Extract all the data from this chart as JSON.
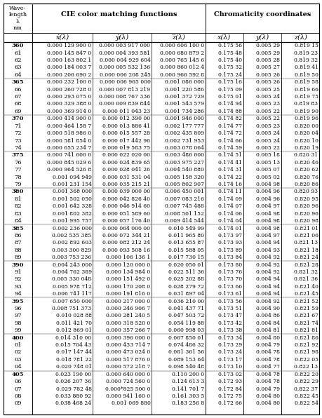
{
  "rows": [
    [
      "360",
      "0.000 129 900 0",
      "0.000 003 917 000",
      "0.000 606 100 0",
      "0.175 56",
      "0.005 29",
      "0.819 15"
    ],
    [
      "61",
      "0.000 145 847 0",
      "0.000 004 393 581",
      "0.000 680 879 2",
      "0.175 48",
      "0.005 29",
      "0.819 23"
    ],
    [
      "62",
      "0.000 163 802 1",
      "0.000 004 929 604",
      "0.000 765 145 6",
      "0.175 40",
      "0.005 28",
      "0.819 32"
    ],
    [
      "63",
      "0.000 184 003 7",
      "0.000 005 532 136",
      "0.000 860 012 4",
      "0.175 32",
      "0.005 27",
      "0.819 41"
    ],
    [
      "64",
      "0.000 206 690 2",
      "0.000 006 208 245",
      "0.000 966 592 8",
      "0.175 24",
      "0.005 26",
      "0.819 50"
    ],
    [
      "365",
      "0.000 232 100 0",
      "0.000 006 965 000",
      "0.001 086 000",
      "0.175 16",
      "0.005 26",
      "0.819 58"
    ],
    [
      "66",
      "0.000 260 728 0",
      "0.000 007 813 219",
      "0.001 220 586",
      "0.175 09",
      "0.005 25",
      "0.819 66"
    ],
    [
      "67",
      "0.000 293 075 0",
      "0.000 008 767 336",
      "0.001 372 729",
      "0.175 01",
      "0.005 24",
      "0.819 75"
    ],
    [
      "68",
      "0.000 329 388 0",
      "0.000 009 839 844",
      "0.001 543 579",
      "0.174 94",
      "0.005 23",
      "0.819 83"
    ],
    [
      "69",
      "0.000 369 914 0",
      "0.000 011 043 23",
      "0.001 734 286",
      "0.174 88",
      "0.005 22",
      "0.819 90"
    ],
    [
      "370",
      "0.000 414 900 0",
      "0.000 012 390 00",
      "0.001 946 000",
      "0.174 82",
      "0.005 22",
      "0.819 96"
    ],
    [
      "71",
      "0.000 464 158 7",
      "0.000 013 886 41",
      "0.002 177 777",
      "0.174 77",
      "0.005 23",
      "0.820 00"
    ],
    [
      "72",
      "0.000 518 986 0",
      "0.000 015 557 28",
      "0.002 435 809",
      "0.174 72",
      "0.005 24",
      "0.820 04"
    ],
    [
      "73",
      "0.000 581 854 0",
      "0.000 017 442 96",
      "0.002 731 953",
      "0.174 66",
      "0.005 24",
      "0.820 10"
    ],
    [
      "74",
      "0.000 655 234 7",
      "0.000 019 583 75",
      "0.003 078 064",
      "0.174 59",
      "0.005 22",
      "0.820 19"
    ],
    [
      "375",
      "0.000 741 600 0",
      "0.000 022 020 00",
      "0.003 486 000",
      "0.174 51",
      "0.005 18",
      "0.820 31"
    ],
    [
      "76",
      "0.000 845 029 6",
      "0.000 024 839 65",
      "0.003 975 227",
      "0.174 41",
      "0.005 13",
      "0.820 46"
    ],
    [
      "77",
      "0.000 964 526 8",
      "0.000 028 041 26",
      "0.004 540 880",
      "0.174 31",
      "0.005 07",
      "0.820 62"
    ],
    [
      "78",
      "0.001 094 949",
      "0.000 031 531 04",
      "0.005 158 320",
      "0.174 22",
      "0.005 02",
      "0.820 76"
    ],
    [
      "79",
      "0.001 231 154",
      "0.000 035 215 21",
      "0.005 802 907",
      "0.174 16",
      "0.004 98",
      "0.820 86"
    ],
    [
      "380",
      "0.001 368 000",
      "0.000 039 000 00",
      "0.006 450 001",
      "0.174 11",
      "0.004 96",
      "0.820 93"
    ],
    [
      "81",
      "0.001 502 050",
      "0.000 042 826 40",
      "0.007 083 216",
      "0.174 09",
      "0.004 96",
      "0.820 95"
    ],
    [
      "82",
      "0.001 642 328",
      "0.000 046 914 60",
      "0.007 745 488",
      "0.174 07",
      "0.004 97",
      "0.820 96"
    ],
    [
      "83",
      "0.001 802 382",
      "0.000 051 589 60",
      "0.008 501 152",
      "0.174 06",
      "0.004 98",
      "0.820 96"
    ],
    [
      "84",
      "0.001 995 757",
      "0.000 057 176 40",
      "0.009 414 544",
      "0.174 04",
      "0.004 98",
      "0.820 98"
    ],
    [
      "385",
      "0.002 236 000",
      "0.000 064 000 00",
      "0.010 549 99",
      "0.174 01",
      "0.004 98",
      "0.821 01"
    ],
    [
      "86",
      "0.002 535 385",
      "0.000 072 344 21",
      "0.011 965 80",
      "0.173 97",
      "0.004 97",
      "0.821 06"
    ],
    [
      "87",
      "0.002 892 603",
      "0.000 082 212 24",
      "0.013 655 87",
      "0.173 93",
      "0.004 94",
      "0.821 13"
    ],
    [
      "88",
      "0.003 300 829",
      "0.000 093 508 16",
      "0.015 588 05",
      "0.173 89",
      "0.004 93",
      "0.821 18"
    ],
    [
      "89",
      "0.003 753 236",
      "0.000 106 136 1",
      "0.017 730 15",
      "0.173 84",
      "0.004 92",
      "0.821 24"
    ],
    [
      "390",
      "0.004 243 000",
      "0.000 120 000 0",
      "0.020 050 01",
      "0.173 80",
      "0.004 92",
      "0.821 28"
    ],
    [
      "91",
      "0.004 762 389",
      "0.000 134 984 0",
      "0.022 511 36",
      "0.173 76",
      "0.004 92",
      "0.821 32"
    ],
    [
      "92",
      "0.005 330 048",
      "0.000 151 492 0",
      "0.025 202 88",
      "0.173 70",
      "0.004 94",
      "0.821 36"
    ],
    [
      "93",
      "0.005 978 712",
      "0.000 170 208 0",
      "0.028 279 72",
      "0.173 66",
      "0.004 94",
      "0.821 40"
    ],
    [
      "94",
      "0.006 741 117",
      "0.000 191 816 0",
      "0.031 897 04",
      "0.173 61",
      "0.004 94",
      "0.821 45"
    ],
    [
      "395",
      "0.007 650 000",
      "0.000 217 000 0",
      "0.036 210 00",
      "0.173 56",
      "0.004 92",
      "0.821 52"
    ],
    [
      "96",
      "0.008 751 373",
      "0.000 246 906 7",
      "0.041 437 71",
      "0.173 51",
      "0.004 90",
      "0.821 59"
    ],
    [
      "97",
      "0.010 028 88",
      "0.000 281 240 5",
      "0.047 503 72",
      "0.173 47",
      "0.004 86",
      "0.821 67"
    ],
    [
      "98",
      "0.011 421 70",
      "0.000 318 520 0",
      "0.054 119 88",
      "0.173 42",
      "0.004 84",
      "0.821 74"
    ],
    [
      "99",
      "0.012 869 01",
      "0.000 357 266 7",
      "0.060 998 03",
      "0.173 38",
      "0.004 81",
      "0.821 81"
    ],
    [
      "400",
      "0.014 310 00",
      "0.000 396 000 0",
      "0.067 850 01",
      "0.173 34",
      "0.004 80",
      "0.821 86"
    ],
    [
      "01",
      "0.015 704 43",
      "0.000 433 714 7",
      "0.074 486 32",
      "0.173 29",
      "0.004 79",
      "0.821 92"
    ],
    [
      "02",
      "0.017 147 44",
      "0.000 473 024 0",
      "0.081 361 56",
      "0.173 24",
      "0.004 78",
      "0.821 98"
    ],
    [
      "03",
      "0.018 781 22",
      "0.000 517 876 0",
      "0.089 153 64",
      "0.173 17",
      "0.004 78",
      "0.822 05"
    ],
    [
      "04",
      "0.020 748 01",
      "0.000 572 218 7",
      "0.098 540 48",
      "0.173 10",
      "0.004 77",
      "0.822 13"
    ],
    [
      "405",
      "0.023 190 00",
      "0.000 640 000 0",
      "0.110 200 0",
      "0.173 02",
      "0.004 78",
      "0.822 20"
    ],
    [
      "06",
      "0.026 207 36",
      "0.000 724 560 0",
      "0.124 613 3",
      "0.172 93",
      "0.004 78",
      "0.822 29"
    ],
    [
      "07",
      "0.029 782 48",
      "0.000*825 500 0",
      "0.141 701 7",
      "0.172 84",
      "0.004 79",
      "0.822 37"
    ],
    [
      "08",
      "0.033 880 92",
      "0.000 941 160 0",
      "0.161 303 5",
      "0.172 75",
      "0.004 80",
      "0.822 45"
    ],
    [
      "09",
      "0.038 468 24",
      "0.001 069 880",
      "0.183 256 8",
      "0.172 66",
      "0.004 80",
      "0.822 54"
    ]
  ]
}
